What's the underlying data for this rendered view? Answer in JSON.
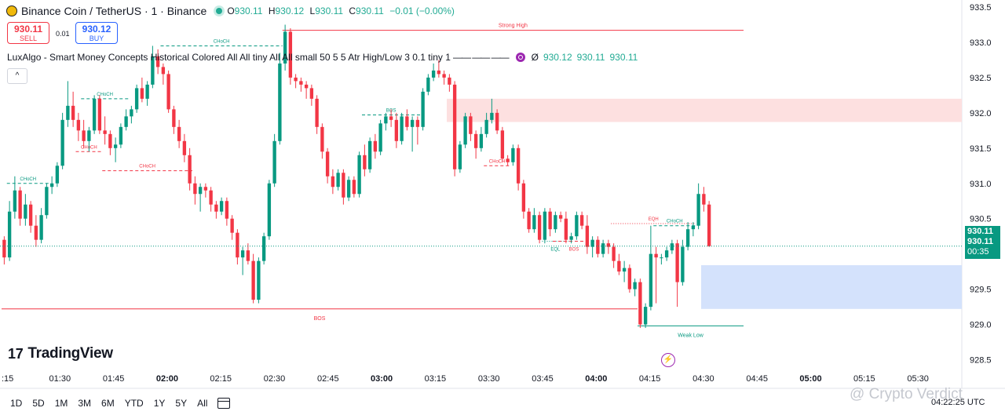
{
  "header": {
    "symbol_title": "Binance Coin / TetherUS · 1 · Binance",
    "ohlc": [
      {
        "label": "O",
        "value": "930.11"
      },
      {
        "label": "H",
        "value": "930.12"
      },
      {
        "label": "L",
        "value": "930.11"
      },
      {
        "label": "C",
        "value": "930.11"
      },
      {
        "label": "",
        "value": "−0.01 (−0.00%)"
      }
    ]
  },
  "trade": {
    "sell_price": "930.11",
    "sell_label": "SELL",
    "spread": "0.01",
    "buy_price": "930.12",
    "buy_label": "BUY"
  },
  "indicator": {
    "name": "LuxAlgo - Smart Money Concepts Historical Colored All All tiny All All small 50 5 5 Atr High/Low 3 0.1 tiny 1",
    "dashes": "—— —— ——",
    "values_prefix": "Ø",
    "values": [
      "930.12",
      "930.11",
      "930.11"
    ]
  },
  "collapse_icon": "chevron-up-icon",
  "brand": {
    "logo_mark": "17",
    "logo_text": "TradingView"
  },
  "price_tag": {
    "line1": "930.11",
    "line2": "930.11",
    "countdown": "00:35"
  },
  "timeframes": [
    "1D",
    "5D",
    "1M",
    "3M",
    "6M",
    "YTD",
    "1Y",
    "5Y",
    "All"
  ],
  "clock": "04:22:25 UTC",
  "watermark": "@ Crypto Verdict",
  "colors": {
    "up": "#089981",
    "down": "#f23645",
    "demand_zone": "#d4e2fc",
    "supply_zone": "#fde0e0",
    "background": "#ffffff"
  },
  "chart_data": {
    "type": "candlestick",
    "y_ticks": [
      "933.5",
      "933.0",
      "932.5",
      "932.0",
      "931.5",
      "931.0",
      "930.5",
      "930.0",
      "929.5",
      "929.0",
      "928.5"
    ],
    "x_ticks": [
      ":15",
      "01:30",
      "01:45",
      "02:00",
      "02:15",
      "02:30",
      "02:45",
      "03:00",
      "03:15",
      "03:30",
      "03:45",
      "04:00",
      "04:15",
      "04:30",
      "04:45",
      "05:00",
      "05:15",
      "05:30"
    ],
    "x_ticks_bold": [
      "02:00",
      "03:00",
      "04:00",
      "05:00"
    ],
    "ylim": [
      928.35,
      933.6
    ],
    "candles": [
      [
        930.2,
        930.25,
        929.85,
        929.95
      ],
      [
        929.95,
        930.75,
        929.9,
        930.6
      ],
      [
        930.6,
        931.1,
        930.5,
        930.9
      ],
      [
        930.9,
        930.95,
        930.4,
        930.5
      ],
      [
        930.5,
        930.85,
        930.4,
        930.7
      ],
      [
        930.7,
        930.75,
        930.3,
        930.4
      ],
      [
        930.4,
        930.55,
        930.1,
        930.2
      ],
      [
        930.2,
        930.65,
        930.15,
        930.55
      ],
      [
        930.55,
        931.0,
        930.5,
        930.95
      ],
      [
        930.95,
        931.1,
        930.85,
        931.0
      ],
      [
        931.0,
        931.3,
        930.95,
        931.25
      ],
      [
        931.25,
        932.0,
        931.2,
        931.9
      ],
      [
        931.9,
        932.45,
        931.8,
        932.1
      ],
      [
        932.1,
        932.3,
        931.8,
        931.9
      ],
      [
        931.9,
        932.0,
        931.6,
        931.75
      ],
      [
        931.75,
        931.9,
        931.5,
        931.6
      ],
      [
        931.6,
        931.8,
        931.45,
        931.75
      ],
      [
        931.75,
        932.25,
        931.7,
        932.2
      ],
      [
        932.2,
        932.25,
        931.7,
        931.75
      ],
      [
        931.75,
        931.95,
        931.55,
        931.7
      ],
      [
        931.7,
        931.75,
        931.4,
        931.5
      ],
      [
        931.5,
        931.65,
        931.3,
        931.55
      ],
      [
        931.55,
        931.85,
        931.5,
        931.8
      ],
      [
        931.8,
        932.05,
        931.75,
        931.95
      ],
      [
        931.95,
        932.1,
        931.85,
        932.05
      ],
      [
        932.05,
        932.4,
        932.0,
        932.35
      ],
      [
        932.35,
        932.5,
        932.15,
        932.2
      ],
      [
        932.2,
        932.45,
        932.1,
        932.4
      ],
      [
        932.4,
        932.95,
        932.35,
        932.8
      ],
      [
        932.8,
        932.9,
        932.55,
        932.65
      ],
      [
        932.65,
        932.7,
        932.4,
        932.55
      ],
      [
        932.55,
        932.6,
        932.0,
        932.05
      ],
      [
        932.05,
        932.1,
        931.7,
        931.8
      ],
      [
        931.8,
        931.9,
        931.5,
        931.6
      ],
      [
        931.6,
        931.7,
        931.3,
        931.4
      ],
      [
        931.4,
        931.5,
        930.9,
        931.0
      ],
      [
        931.0,
        931.1,
        930.7,
        930.85
      ],
      [
        930.85,
        931.0,
        930.6,
        930.95
      ],
      [
        930.95,
        931.0,
        930.8,
        930.9
      ],
      [
        930.9,
        930.95,
        930.6,
        930.7
      ],
      [
        930.7,
        930.75,
        930.5,
        930.6
      ],
      [
        930.6,
        930.8,
        930.55,
        930.75
      ],
      [
        930.75,
        930.8,
        930.4,
        930.5
      ],
      [
        930.5,
        930.55,
        930.2,
        930.3
      ],
      [
        930.3,
        930.35,
        929.85,
        929.95
      ],
      [
        929.95,
        930.1,
        929.7,
        930.05
      ],
      [
        930.05,
        930.15,
        929.85,
        929.9
      ],
      [
        929.9,
        930.0,
        929.3,
        929.35
      ],
      [
        929.35,
        929.95,
        929.3,
        929.9
      ],
      [
        929.9,
        930.3,
        929.85,
        930.25
      ],
      [
        930.25,
        931.05,
        930.2,
        931.0
      ],
      [
        931.0,
        931.7,
        930.95,
        931.6
      ],
      [
        931.6,
        932.85,
        931.55,
        932.7
      ],
      [
        932.7,
        933.25,
        932.6,
        933.15
      ],
      [
        933.15,
        933.2,
        932.4,
        932.5
      ],
      [
        932.5,
        932.55,
        932.35,
        932.45
      ],
      [
        932.45,
        932.5,
        932.3,
        932.4
      ],
      [
        932.4,
        932.45,
        932.2,
        932.35
      ],
      [
        932.35,
        932.4,
        932.1,
        932.2
      ],
      [
        932.2,
        932.25,
        931.7,
        931.8
      ],
      [
        931.8,
        931.85,
        931.35,
        931.45
      ],
      [
        931.45,
        931.5,
        931.0,
        931.1
      ],
      [
        931.1,
        931.2,
        930.85,
        930.95
      ],
      [
        930.95,
        931.2,
        930.9,
        931.15
      ],
      [
        931.15,
        931.2,
        930.7,
        930.8
      ],
      [
        930.8,
        931.1,
        930.75,
        931.05
      ],
      [
        931.05,
        931.1,
        930.8,
        930.85
      ],
      [
        930.85,
        931.45,
        930.8,
        931.4
      ],
      [
        931.4,
        931.55,
        931.1,
        931.2
      ],
      [
        931.2,
        931.65,
        931.15,
        931.6
      ],
      [
        931.6,
        931.7,
        931.35,
        931.45
      ],
      [
        931.45,
        931.9,
        931.4,
        931.85
      ],
      [
        931.85,
        932.0,
        931.75,
        931.95
      ],
      [
        931.95,
        932.05,
        931.8,
        931.9
      ],
      [
        931.9,
        932.0,
        931.5,
        931.6
      ],
      [
        931.6,
        932.0,
        931.55,
        931.95
      ],
      [
        931.95,
        932.05,
        931.75,
        931.8
      ],
      [
        931.8,
        931.95,
        931.45,
        931.9
      ],
      [
        931.9,
        931.95,
        931.55,
        931.8
      ],
      [
        931.8,
        932.35,
        931.75,
        932.3
      ],
      [
        932.3,
        932.55,
        932.25,
        932.5
      ],
      [
        932.5,
        932.7,
        932.45,
        932.6
      ],
      [
        932.6,
        932.75,
        932.5,
        932.55
      ],
      [
        932.55,
        932.6,
        932.4,
        932.5
      ],
      [
        932.5,
        932.55,
        932.3,
        932.4
      ],
      [
        932.4,
        932.45,
        931.1,
        931.2
      ],
      [
        931.2,
        931.6,
        931.15,
        931.55
      ],
      [
        931.55,
        932.0,
        931.5,
        931.95
      ],
      [
        931.95,
        932.0,
        931.6,
        931.7
      ],
      [
        931.7,
        931.75,
        931.35,
        931.5
      ],
      [
        931.5,
        931.8,
        931.45,
        931.7
      ],
      [
        931.7,
        932.0,
        931.65,
        931.9
      ],
      [
        931.9,
        932.2,
        931.85,
        932.0
      ],
      [
        932.0,
        932.05,
        931.7,
        931.75
      ],
      [
        931.75,
        931.8,
        931.3,
        931.35
      ],
      [
        931.35,
        931.4,
        931.25,
        931.3
      ],
      [
        931.3,
        931.55,
        931.25,
        931.5
      ],
      [
        931.5,
        931.55,
        930.9,
        931.0
      ],
      [
        931.0,
        931.05,
        930.5,
        930.6
      ],
      [
        930.6,
        930.65,
        930.3,
        930.35
      ],
      [
        930.35,
        930.65,
        930.3,
        930.55
      ],
      [
        930.55,
        930.6,
        930.15,
        930.2
      ],
      [
        930.2,
        930.65,
        930.15,
        930.6
      ],
      [
        930.6,
        930.65,
        930.25,
        930.35
      ],
      [
        930.35,
        930.6,
        930.3,
        930.55
      ],
      [
        930.55,
        930.6,
        930.45,
        930.5
      ],
      [
        930.5,
        930.6,
        930.15,
        930.2
      ],
      [
        930.2,
        930.3,
        930.15,
        930.25
      ],
      [
        930.25,
        930.6,
        930.2,
        930.55
      ],
      [
        930.55,
        930.6,
        930.35,
        930.4
      ],
      [
        930.4,
        930.55,
        930.0,
        930.1
      ],
      [
        930.1,
        930.25,
        929.95,
        930.2
      ],
      [
        930.2,
        930.25,
        929.95,
        930.0
      ],
      [
        930.0,
        930.2,
        929.95,
        930.15
      ],
      [
        930.15,
        930.2,
        930.0,
        930.1
      ],
      [
        930.1,
        930.15,
        929.8,
        929.9
      ],
      [
        929.9,
        930.0,
        929.7,
        929.75
      ],
      [
        929.75,
        929.9,
        929.6,
        929.8
      ],
      [
        929.8,
        929.85,
        929.45,
        929.5
      ],
      [
        929.5,
        929.65,
        929.4,
        929.6
      ],
      [
        929.6,
        929.65,
        928.95,
        929.0
      ],
      [
        929.0,
        929.3,
        928.95,
        929.25
      ],
      [
        929.25,
        930.4,
        929.2,
        930.0
      ],
      [
        930.0,
        930.1,
        929.3,
        929.95
      ],
      [
        929.95,
        930.0,
        929.85,
        929.95
      ],
      [
        929.95,
        930.1,
        929.9,
        930.05
      ],
      [
        930.05,
        930.2,
        930.0,
        930.15
      ],
      [
        930.15,
        930.2,
        929.25,
        929.6
      ],
      [
        929.6,
        930.2,
        929.55,
        930.1
      ],
      [
        930.1,
        930.45,
        930.05,
        930.35
      ],
      [
        930.35,
        930.45,
        930.25,
        930.4
      ],
      [
        930.4,
        931.0,
        930.35,
        930.85
      ],
      [
        930.85,
        930.95,
        930.6,
        930.7
      ],
      [
        930.7,
        930.75,
        930.1,
        930.11
      ]
    ],
    "current_price": 930.11,
    "zones": [
      {
        "type": "supply",
        "top": 932.2,
        "bottom": 931.87,
        "from_bar": 84
      },
      {
        "type": "demand",
        "top": 929.84,
        "bottom": 929.22,
        "from_bar": 132
      }
    ],
    "levels": [
      {
        "label": "Strong High",
        "price": 933.17,
        "from_bar": 53,
        "to_bar": 140,
        "color": "#f23645",
        "style": "solid"
      },
      {
        "label": "BOS",
        "price": 929.22,
        "from_bar": 0,
        "to_bar": 120,
        "color": "#f23645",
        "style": "solid"
      },
      {
        "label": "Weak Low",
        "price": 928.98,
        "from_bar": 120,
        "to_bar": 140,
        "color": "#089981",
        "style": "solid"
      },
      {
        "label": "CHoCH",
        "price": 931.0,
        "from_bar": 1,
        "to_bar": 9,
        "color": "#089981",
        "style": "dashed"
      },
      {
        "label": "CHoCH",
        "price": 931.45,
        "from_bar": 14,
        "to_bar": 19,
        "color": "#f23645",
        "style": "dashed"
      },
      {
        "label": "CHoCH",
        "price": 932.2,
        "from_bar": 15,
        "to_bar": 24,
        "color": "#089981",
        "style": "dashed"
      },
      {
        "label": "CHoCH",
        "price": 931.18,
        "from_bar": 19,
        "to_bar": 36,
        "color": "#f23645",
        "style": "dashed"
      },
      {
        "label": "CHoCH",
        "price": 932.95,
        "from_bar": 30,
        "to_bar": 53,
        "color": "#089981",
        "style": "dashed"
      },
      {
        "label": "BOS",
        "price": 931.97,
        "from_bar": 68,
        "to_bar": 79,
        "color": "#089981",
        "style": "dashed"
      },
      {
        "label": "CHoCH",
        "price": 931.25,
        "from_bar": 91,
        "to_bar": 96,
        "color": "#f23645",
        "style": "dashed"
      },
      {
        "label": "EQL",
        "price": 930.18,
        "from_bar": 102,
        "to_bar": 107,
        "color": "#089981",
        "style": "dotted"
      },
      {
        "label": "BOS",
        "price": 930.18,
        "from_bar": 104,
        "to_bar": 112,
        "color": "#f23645",
        "style": "dashed"
      },
      {
        "label": "EQH",
        "price": 930.43,
        "from_bar": 115,
        "to_bar": 131,
        "color": "#f23645",
        "style": "dotted"
      },
      {
        "label": "CHoCH",
        "price": 930.4,
        "from_bar": 123,
        "to_bar": 131,
        "color": "#089981",
        "style": "dashed"
      }
    ]
  }
}
